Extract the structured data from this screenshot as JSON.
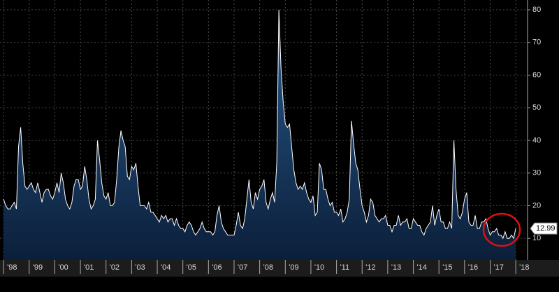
{
  "chart_data": {
    "type": "area",
    "grid": true,
    "log_scale": false,
    "xlim": [
      1997.86,
      2018.46
    ],
    "ylim": [
      3.4,
      83
    ],
    "xticks": [
      {
        "value": 1998,
        "label": "'98"
      },
      {
        "value": 1999,
        "label": "'99"
      },
      {
        "value": 2000,
        "label": "'00"
      },
      {
        "value": 2001,
        "label": "'01"
      },
      {
        "value": 2002,
        "label": "'02"
      },
      {
        "value": 2003,
        "label": "'03"
      },
      {
        "value": 2004,
        "label": "'04"
      },
      {
        "value": 2005,
        "label": "'05"
      },
      {
        "value": 2006,
        "label": "'06"
      },
      {
        "value": 2007,
        "label": "'07"
      },
      {
        "value": 2008,
        "label": "'08"
      },
      {
        "value": 2009,
        "label": "'09"
      },
      {
        "value": 2010,
        "label": "'10"
      },
      {
        "value": 2011,
        "label": "'11"
      },
      {
        "value": 2012,
        "label": "'12"
      },
      {
        "value": 2013,
        "label": "'13"
      },
      {
        "value": 2014,
        "label": "'14"
      },
      {
        "value": 2015,
        "label": "'15"
      },
      {
        "value": 2016,
        "label": "'16"
      },
      {
        "value": 2017,
        "label": "'17"
      },
      {
        "value": 2018,
        "label": "'18"
      }
    ],
    "yticks": [
      10,
      20,
      30,
      40,
      50,
      60,
      70,
      80
    ],
    "x": [
      1998.0,
      1998.083,
      1998.167,
      1998.25,
      1998.333,
      1998.417,
      1998.5,
      1998.583,
      1998.667,
      1998.75,
      1998.833,
      1998.917,
      1999.0,
      1999.083,
      1999.167,
      1999.25,
      1999.333,
      1999.417,
      1999.5,
      1999.583,
      1999.667,
      1999.75,
      1999.833,
      1999.917,
      2000.0,
      2000.083,
      2000.167,
      2000.25,
      2000.333,
      2000.417,
      2000.5,
      2000.583,
      2000.667,
      2000.75,
      2000.833,
      2000.917,
      2001.0,
      2001.083,
      2001.167,
      2001.25,
      2001.333,
      2001.417,
      2001.5,
      2001.583,
      2001.667,
      2001.75,
      2001.833,
      2001.917,
      2002.0,
      2002.083,
      2002.167,
      2002.25,
      2002.333,
      2002.417,
      2002.5,
      2002.583,
      2002.667,
      2002.75,
      2002.833,
      2002.917,
      2003.0,
      2003.083,
      2003.167,
      2003.25,
      2003.333,
      2003.417,
      2003.5,
      2003.583,
      2003.667,
      2003.75,
      2003.833,
      2003.917,
      2004.0,
      2004.083,
      2004.167,
      2004.25,
      2004.333,
      2004.417,
      2004.5,
      2004.583,
      2004.667,
      2004.75,
      2004.833,
      2004.917,
      2005.0,
      2005.083,
      2005.167,
      2005.25,
      2005.333,
      2005.417,
      2005.5,
      2005.583,
      2005.667,
      2005.75,
      2005.833,
      2005.917,
      2006.0,
      2006.083,
      2006.167,
      2006.25,
      2006.333,
      2006.417,
      2006.5,
      2006.583,
      2006.667,
      2006.75,
      2006.833,
      2006.917,
      2007.0,
      2007.083,
      2007.167,
      2007.25,
      2007.333,
      2007.417,
      2007.5,
      2007.583,
      2007.667,
      2007.75,
      2007.833,
      2007.917,
      2008.0,
      2008.083,
      2008.167,
      2008.25,
      2008.333,
      2008.417,
      2008.5,
      2008.583,
      2008.667,
      2008.75,
      2008.833,
      2008.917,
      2009.0,
      2009.083,
      2009.167,
      2009.25,
      2009.333,
      2009.417,
      2009.5,
      2009.583,
      2009.667,
      2009.75,
      2009.833,
      2009.917,
      2010.0,
      2010.083,
      2010.167,
      2010.25,
      2010.333,
      2010.417,
      2010.5,
      2010.583,
      2010.667,
      2010.75,
      2010.833,
      2010.917,
      2011.0,
      2011.083,
      2011.167,
      2011.25,
      2011.333,
      2011.417,
      2011.5,
      2011.583,
      2011.667,
      2011.75,
      2011.833,
      2011.917,
      2012.0,
      2012.083,
      2012.167,
      2012.25,
      2012.333,
      2012.417,
      2012.5,
      2012.583,
      2012.667,
      2012.75,
      2012.833,
      2012.917,
      2013.0,
      2013.083,
      2013.167,
      2013.25,
      2013.333,
      2013.417,
      2013.5,
      2013.583,
      2013.667,
      2013.75,
      2013.833,
      2013.917,
      2014.0,
      2014.083,
      2014.167,
      2014.25,
      2014.333,
      2014.417,
      2014.5,
      2014.583,
      2014.667,
      2014.75,
      2014.833,
      2014.917,
      2015.0,
      2015.083,
      2015.167,
      2015.25,
      2015.333,
      2015.417,
      2015.5,
      2015.583,
      2015.667,
      2015.75,
      2015.833,
      2015.917,
      2016.0,
      2016.083,
      2016.167,
      2016.25,
      2016.333,
      2016.417,
      2016.5,
      2016.583,
      2016.667,
      2016.75,
      2016.833,
      2016.917,
      2017.0,
      2017.083,
      2017.167,
      2017.25,
      2017.333,
      2017.417,
      2017.5,
      2017.583,
      2017.667,
      2017.75,
      2017.833,
      2017.917,
      2018.0
    ],
    "series": [
      {
        "color": "#ffffff",
        "fill": "#16355c",
        "values": [
          22,
          20,
          19,
          19,
          20,
          21,
          19,
          38,
          44,
          33,
          26,
          25,
          26,
          27,
          25,
          24,
          27,
          24,
          21,
          24,
          25,
          25,
          23,
          22,
          24,
          27,
          24,
          30,
          27,
          22,
          20,
          19,
          21,
          26,
          28,
          28,
          25,
          26,
          32,
          28,
          22,
          19,
          20,
          22,
          40,
          34,
          27,
          23,
          22,
          24,
          20,
          20,
          21,
          28,
          38,
          43,
          40,
          38,
          29,
          28,
          32,
          31,
          33,
          26,
          20,
          20,
          20,
          19,
          21,
          18,
          18,
          17,
          16,
          15,
          17,
          16,
          17,
          15,
          16,
          16,
          14,
          16,
          14,
          13,
          13,
          12,
          14,
          15,
          14,
          12,
          11,
          12,
          13,
          15,
          13,
          12,
          12,
          12,
          11,
          12,
          17,
          20,
          15,
          13,
          12,
          11,
          11,
          11,
          11,
          14,
          18,
          14,
          13,
          16,
          22,
          28,
          21,
          19,
          24,
          22,
          25,
          26,
          28,
          21,
          19,
          22,
          24,
          21,
          33,
          80,
          62,
          52,
          45,
          44,
          45,
          38,
          31,
          27,
          25,
          26,
          25,
          27,
          24,
          22,
          21,
          23,
          17,
          18,
          33,
          31,
          25,
          25,
          22,
          20,
          21,
          18,
          18,
          17,
          19,
          15,
          16,
          18,
          22,
          46,
          39,
          33,
          31,
          25,
          20,
          18,
          15,
          17,
          22,
          21,
          17,
          16,
          15,
          16,
          16,
          17,
          14,
          14,
          12,
          14,
          14,
          17,
          14,
          15,
          15,
          16,
          13,
          13,
          16,
          15,
          14,
          14,
          12,
          11,
          13,
          14,
          15,
          20,
          14,
          17,
          19,
          15,
          15,
          13,
          13,
          15,
          13,
          40,
          25,
          17,
          16,
          18,
          22,
          24,
          15,
          14,
          14,
          17,
          13,
          13,
          15,
          15,
          16,
          13,
          11,
          12,
          12,
          13,
          11,
          11,
          10,
          12,
          10,
          10,
          11,
          10,
          12.99
        ]
      }
    ]
  }
}
